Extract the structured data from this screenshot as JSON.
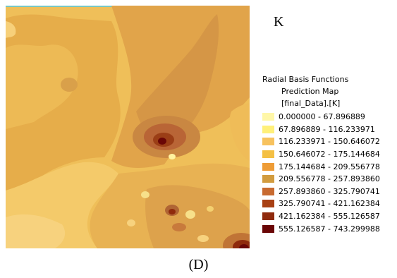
{
  "panel_letter": "K",
  "caption": "(D)",
  "legend": {
    "title_lines": [
      "Radial Basis Functions",
      "Prediction Map",
      "[final_Data].[K]"
    ],
    "classes": [
      {
        "label": "0.000000 - 67.896889",
        "color": "#FFF7A8"
      },
      {
        "label": "67.896889 - 116.233971",
        "color": "#FFF07A"
      },
      {
        "label": "116.233971 - 150.646072",
        "color": "#F7C25E"
      },
      {
        "label": "150.646072 - 175.144684",
        "color": "#F4C044"
      },
      {
        "label": "175.144684 - 209.556778",
        "color": "#EE9C36"
      },
      {
        "label": "209.556778 - 257.893860",
        "color": "#D29C3F"
      },
      {
        "label": "257.893860 - 325.790741",
        "color": "#C86A30"
      },
      {
        "label": "325.790741 - 421.162384",
        "color": "#A84014"
      },
      {
        "label": "421.162384 - 555.126587",
        "color": "#8F2A0C"
      },
      {
        "label": "555.126587 - 743.299988",
        "color": "#6A0606"
      }
    ]
  }
}
